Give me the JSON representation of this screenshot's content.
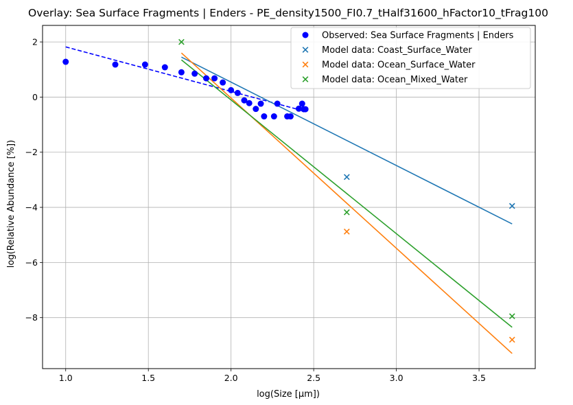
{
  "chart_data": {
    "type": "scatter",
    "title": "Overlay: Sea Surface Fragments | Enders - PE_density1500_FI0.7_tHalf31600_hFactor10_tFrag100",
    "xlabel": "log(Size [μm])",
    "ylabel": "log(Relative Abundance [%])",
    "xlim": [
      0.86,
      3.84
    ],
    "ylim": [
      -9.85,
      2.6
    ],
    "xticks": [
      1.0,
      1.5,
      2.0,
      2.5,
      3.0,
      3.5
    ],
    "xtick_labels": [
      "1.0",
      "1.5",
      "2.0",
      "2.5",
      "3.0",
      "3.5"
    ],
    "yticks": [
      2,
      0,
      -2,
      -4,
      -6,
      -8
    ],
    "ytick_labels": [
      "2",
      "0",
      "−2",
      "−4",
      "−6",
      "−8"
    ],
    "grid": true,
    "legend_position": "top-right",
    "observed": {
      "name": "Observed: Sea Surface Fragments | Enders",
      "color": "#0000ff",
      "x": [
        1.0,
        1.3,
        1.48,
        1.6,
        1.7,
        1.78,
        1.85,
        1.9,
        1.95,
        2.0,
        2.04,
        2.08,
        2.11,
        2.15,
        2.18,
        2.2,
        2.26,
        2.28,
        2.34,
        2.36,
        2.41,
        2.43,
        2.44,
        2.45
      ],
      "y": [
        1.28,
        1.18,
        1.18,
        1.08,
        0.9,
        0.85,
        0.68,
        0.68,
        0.53,
        0.25,
        0.15,
        -0.12,
        -0.22,
        -0.43,
        -0.24,
        -0.7,
        -0.7,
        -0.24,
        -0.7,
        -0.7,
        -0.42,
        -0.24,
        -0.44,
        -0.44
      ],
      "fit": {
        "x": [
          1.0,
          2.45
        ],
        "y": [
          1.82,
          -0.52
        ],
        "style": "dashed"
      }
    },
    "series": [
      {
        "name": "Model data: Coast_Surface_Water",
        "color": "#1f77b4",
        "x": [
          2.7,
          3.7
        ],
        "y": [
          -2.9,
          -3.95
        ],
        "fit": {
          "x": [
            1.7,
            3.7
          ],
          "y": [
            1.45,
            -4.6
          ]
        }
      },
      {
        "name": "Model data: Ocean_Surface_Water",
        "color": "#ff7f0e",
        "x": [
          2.7,
          3.7
        ],
        "y": [
          -4.88,
          -8.8
        ],
        "fit": {
          "x": [
            1.7,
            3.7
          ],
          "y": [
            1.6,
            -9.3
          ]
        }
      },
      {
        "name": "Model data: Ocean_Mixed_Water",
        "color": "#2ca02c",
        "x": [
          1.7,
          2.7,
          3.7
        ],
        "y": [
          2.0,
          -4.18,
          -7.95
        ],
        "fit": {
          "x": [
            1.7,
            3.7
          ],
          "y": [
            1.35,
            -8.35
          ]
        }
      }
    ]
  }
}
